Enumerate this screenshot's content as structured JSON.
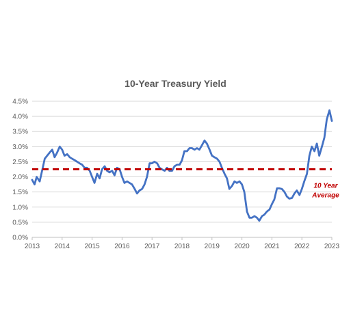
{
  "chart_data": {
    "type": "line",
    "title": "10-Year Treasury Yield",
    "xlabel": "",
    "ylabel": "",
    "xlim": [
      2013,
      2023
    ],
    "ylim": [
      0,
      4.5
    ],
    "x_ticks": [
      "2013",
      "2014",
      "2015",
      "2016",
      "2017",
      "2018",
      "2019",
      "2020",
      "2021",
      "2022",
      "2023"
    ],
    "y_ticks": [
      "0.0%",
      "0.5%",
      "1.0%",
      "1.5%",
      "2.0%",
      "2.5%",
      "3.0%",
      "3.5%",
      "4.0%",
      "4.5%"
    ],
    "grid": "horizontal",
    "series": [
      {
        "color": "#4472c4",
        "x": [
          2013.0,
          2013.08,
          2013.15,
          2013.25,
          2013.33,
          2013.42,
          2013.5,
          2013.58,
          2013.67,
          2013.75,
          2013.83,
          2013.92,
          2014.0,
          2014.08,
          2014.17,
          2014.25,
          2014.33,
          2014.42,
          2014.5,
          2014.58,
          2014.67,
          2014.75,
          2014.83,
          2014.92,
          2015.0,
          2015.08,
          2015.17,
          2015.25,
          2015.33,
          2015.42,
          2015.5,
          2015.58,
          2015.67,
          2015.75,
          2015.83,
          2015.92,
          2016.0,
          2016.08,
          2016.17,
          2016.25,
          2016.33,
          2016.42,
          2016.5,
          2016.58,
          2016.67,
          2016.75,
          2016.83,
          2016.92,
          2017.0,
          2017.08,
          2017.17,
          2017.25,
          2017.33,
          2017.42,
          2017.5,
          2017.58,
          2017.67,
          2017.75,
          2017.83,
          2017.92,
          2018.0,
          2018.08,
          2018.17,
          2018.25,
          2018.33,
          2018.42,
          2018.5,
          2018.58,
          2018.67,
          2018.75,
          2018.83,
          2018.92,
          2019.0,
          2019.08,
          2019.17,
          2019.25,
          2019.33,
          2019.42,
          2019.5,
          2019.58,
          2019.67,
          2019.75,
          2019.83,
          2019.92,
          2020.0,
          2020.08,
          2020.17,
          2020.25,
          2020.33,
          2020.42,
          2020.5,
          2020.58,
          2020.67,
          2020.75,
          2020.83,
          2020.92,
          2021.0,
          2021.08,
          2021.17,
          2021.25,
          2021.33,
          2021.42,
          2021.5,
          2021.58,
          2021.67,
          2021.75,
          2021.83,
          2021.92,
          2022.0,
          2022.08,
          2022.17,
          2022.25,
          2022.33,
          2022.42,
          2022.5,
          2022.58,
          2022.67,
          2022.75,
          2022.83,
          2022.92,
          2023.0
        ],
        "values": [
          1.9,
          1.75,
          2.0,
          1.85,
          2.2,
          2.6,
          2.7,
          2.8,
          2.9,
          2.65,
          2.8,
          3.0,
          2.9,
          2.7,
          2.75,
          2.65,
          2.6,
          2.55,
          2.5,
          2.45,
          2.4,
          2.3,
          2.3,
          2.2,
          2.0,
          1.8,
          2.1,
          1.95,
          2.25,
          2.35,
          2.2,
          2.15,
          2.2,
          2.05,
          2.3,
          2.25,
          2.0,
          1.8,
          1.85,
          1.8,
          1.75,
          1.6,
          1.45,
          1.55,
          1.6,
          1.75,
          2.0,
          2.45,
          2.45,
          2.5,
          2.45,
          2.3,
          2.25,
          2.2,
          2.3,
          2.2,
          2.2,
          2.35,
          2.4,
          2.4,
          2.55,
          2.85,
          2.85,
          2.95,
          2.95,
          2.9,
          2.95,
          2.9,
          3.05,
          3.2,
          3.1,
          2.9,
          2.7,
          2.65,
          2.6,
          2.5,
          2.3,
          2.1,
          1.95,
          1.6,
          1.7,
          1.85,
          1.8,
          1.85,
          1.75,
          1.5,
          0.85,
          0.65,
          0.65,
          0.7,
          0.65,
          0.55,
          0.7,
          0.75,
          0.85,
          0.92,
          1.1,
          1.25,
          1.62,
          1.62,
          1.6,
          1.5,
          1.35,
          1.28,
          1.3,
          1.45,
          1.55,
          1.4,
          1.6,
          1.85,
          2.1,
          2.7,
          3.0,
          2.85,
          3.1,
          2.7,
          3.0,
          3.3,
          3.9,
          4.2,
          3.85
        ]
      }
    ],
    "reference_lines": [
      {
        "value": 2.25,
        "color": "#c00000",
        "style": "dashed",
        "label_line1": "10 Year",
        "label_line2": "Average"
      }
    ]
  }
}
